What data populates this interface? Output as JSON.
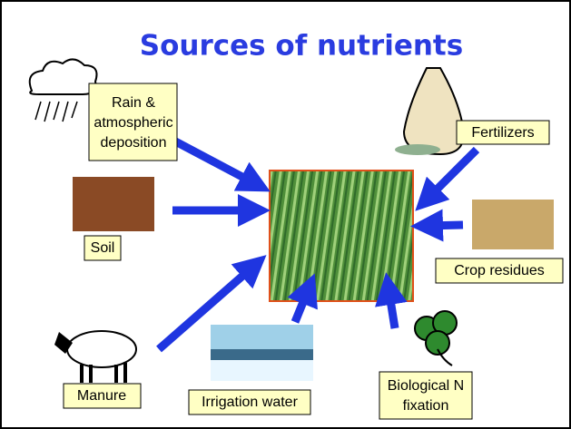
{
  "title": "Sources of nutrients",
  "sources": [
    {
      "label": [
        "Rain &",
        "atmospheric",
        "deposition"
      ]
    },
    {
      "label": [
        "Fertilizers"
      ]
    },
    {
      "label": [
        "Soil"
      ]
    },
    {
      "label": [
        "Crop residues"
      ]
    },
    {
      "label": [
        "Manure"
      ]
    },
    {
      "label": [
        "Irrigation water"
      ]
    },
    {
      "label": [
        "Biological N",
        "fixation"
      ]
    }
  ]
}
